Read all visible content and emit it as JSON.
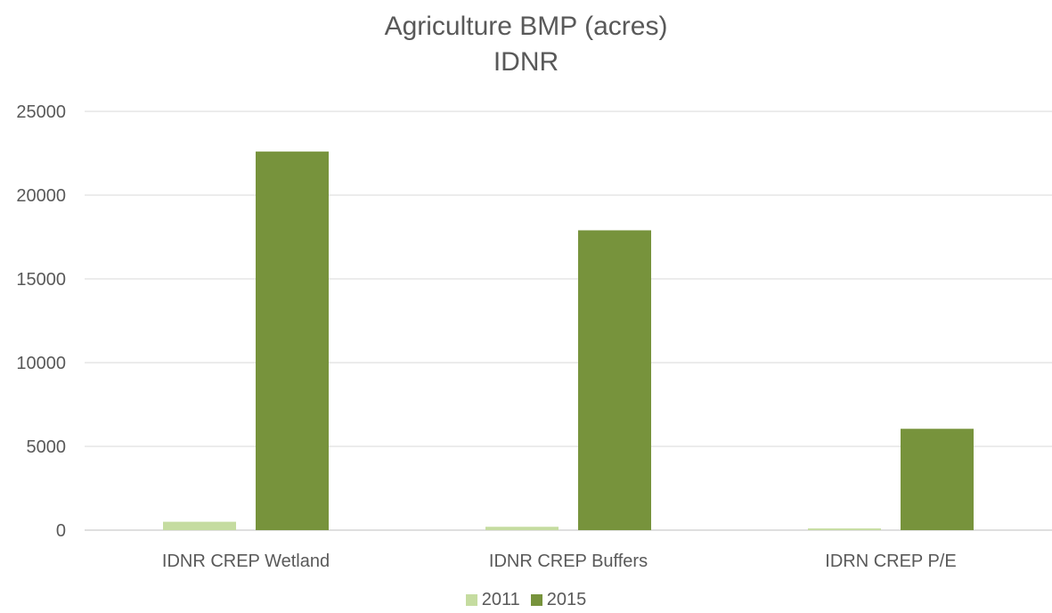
{
  "chart_data": {
    "type": "bar",
    "title": "Agriculture BMP (acres)",
    "subtitle": "IDNR",
    "categories": [
      "IDNR CREP Wetland",
      "IDNR CREP Buffers",
      "IDRN CREP P/E"
    ],
    "series": [
      {
        "name": "2011",
        "color": "#c5dca0",
        "values": [
          500,
          200,
          100
        ]
      },
      {
        "name": "2015",
        "color": "#77933c",
        "values": [
          22600,
          17900,
          6050
        ]
      }
    ],
    "ylim": [
      0,
      25000
    ],
    "yticks": [
      "0",
      "5000",
      "10000",
      "15000",
      "20000",
      "25000"
    ],
    "grid": true,
    "legend_position": "bottom"
  }
}
